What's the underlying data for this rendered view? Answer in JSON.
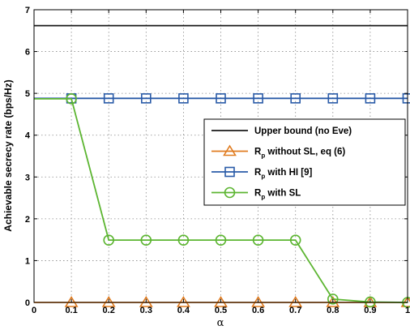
{
  "chart_data": {
    "type": "line",
    "xlabel": "α",
    "ylabel": "Achievable secrecy rate (bps/Hz)",
    "xlim": [
      0,
      1
    ],
    "ylim": [
      0,
      7
    ],
    "xticks": [
      "0",
      "0.1",
      "0.2",
      "0.3",
      "0.4",
      "0.5",
      "0.6",
      "0.7",
      "0.8",
      "0.9",
      "1"
    ],
    "yticks": [
      "0",
      "1",
      "2",
      "3",
      "4",
      "5",
      "6",
      "7"
    ],
    "grid": true,
    "legend_position": "center-right",
    "series": [
      {
        "name": "Upper bound (no Eve)",
        "legend_main": "Upper bound (no Eve)",
        "legend_sub": "",
        "legend_tail": "",
        "color": "#1a1a1a",
        "marker": "none",
        "x": [
          0,
          1
        ],
        "y": [
          6.62,
          6.62
        ]
      },
      {
        "name": "Rp without SL, eq (6)",
        "legend_main": "R",
        "legend_sub": "p",
        "legend_tail": " without SL, eq (6)",
        "color": "#e07b1f",
        "marker": "triangle",
        "x": [
          0,
          0.1,
          0.2,
          0.3,
          0.4,
          0.5,
          0.6,
          0.7,
          0.8,
          0.9,
          1
        ],
        "y": [
          0,
          0,
          0,
          0,
          0,
          0,
          0,
          0,
          0,
          0,
          0
        ]
      },
      {
        "name": "Rp with HI [9]",
        "legend_main": "R",
        "legend_sub": "p",
        "legend_tail": " with HI [9]",
        "color": "#2a5ba8",
        "marker": "square",
        "x": [
          0,
          0.1,
          0.2,
          0.3,
          0.4,
          0.5,
          0.6,
          0.7,
          0.8,
          0.9,
          1
        ],
        "y": [
          4.88,
          4.88,
          4.88,
          4.88,
          4.88,
          4.88,
          4.88,
          4.88,
          4.88,
          4.88,
          4.88
        ]
      },
      {
        "name": "Rp with SL",
        "legend_main": "R",
        "legend_sub": "p",
        "legend_tail": " with SL",
        "color": "#5cb531",
        "marker": "circle",
        "x": [
          0,
          0.1,
          0.2,
          0.3,
          0.4,
          0.5,
          0.6,
          0.7,
          0.8,
          0.9,
          1
        ],
        "y": [
          4.87,
          4.87,
          1.49,
          1.49,
          1.49,
          1.49,
          1.49,
          1.49,
          0.08,
          0.01,
          0.0
        ]
      }
    ],
    "marker_x_start": 0.1
  }
}
